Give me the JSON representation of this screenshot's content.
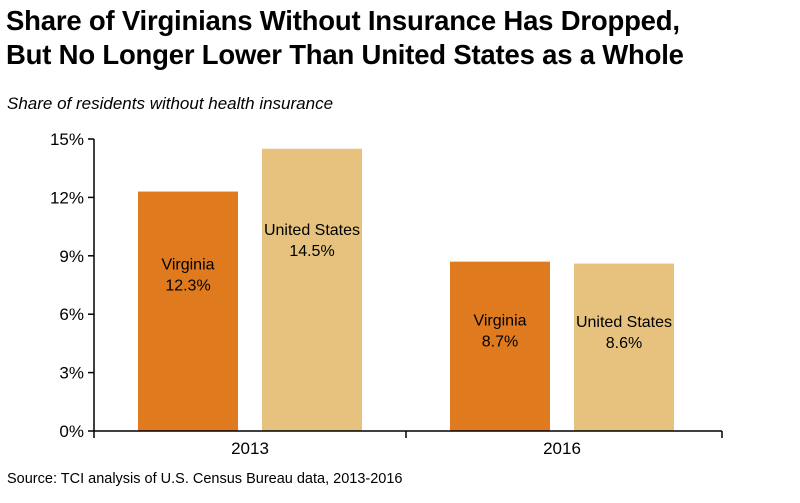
{
  "title_line1": "Share of Virginians Without Insurance Has Dropped,",
  "title_line2": "But No Longer Lower Than United States as a Whole",
  "subtitle": "Share of residents without health insurance",
  "source": "Source: TCI analysis of U.S. Census Bureau data, 2013-2016",
  "colors": {
    "virginia": "#e07a1f",
    "united_states": "#e6c27e",
    "axis": "#000000"
  },
  "chart_data": {
    "type": "bar",
    "title": "Share of Virginians Without Insurance Has Dropped, But No Longer Lower Than United States as a Whole",
    "ylabel": "Share of residents without health insurance",
    "xlabel": "",
    "categories": [
      "2013",
      "2016"
    ],
    "ylim": [
      0,
      15
    ],
    "yticks": [
      0,
      3,
      6,
      9,
      12,
      15
    ],
    "ytick_labels": [
      "0%",
      "3%",
      "6%",
      "9%",
      "12%",
      "15%"
    ],
    "series": [
      {
        "name": "Virginia",
        "values": [
          12.3,
          8.7
        ],
        "labels": [
          "12.3%",
          "8.7%"
        ]
      },
      {
        "name": "United States",
        "values": [
          14.5,
          8.6
        ],
        "labels": [
          "14.5%",
          "8.6%"
        ]
      }
    ]
  }
}
